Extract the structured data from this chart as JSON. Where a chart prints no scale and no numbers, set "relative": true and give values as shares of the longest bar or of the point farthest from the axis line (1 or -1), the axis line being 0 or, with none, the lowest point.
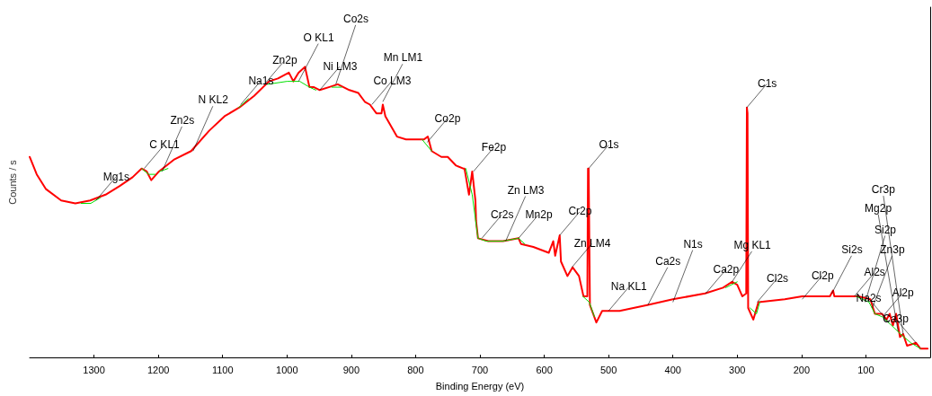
{
  "chart_data": {
    "type": "line",
    "relative": true,
    "xlabel": "Binding Energy (eV)",
    "ylabel": "Counts / s",
    "xlim": [
      1400,
      0
    ],
    "xticks": [
      1300,
      1200,
      1100,
      1000,
      900,
      800,
      700,
      600,
      500,
      400,
      300,
      200,
      100
    ],
    "grid": false,
    "marker": "none",
    "line_style": "solid",
    "series": [
      {
        "color": "#ff0000",
        "x": [
          1400,
          1389,
          1375,
          1351,
          1329,
          1306,
          1282,
          1260,
          1240,
          1226,
          1218,
          1211,
          1199,
          1176,
          1149,
          1121,
          1097,
          1074,
          1051,
          1028,
          1014,
          997,
          990,
          982,
          972,
          965,
          958,
          949,
          935,
          921,
          903,
          889,
          879,
          871,
          861,
          853,
          851,
          847,
          829,
          815,
          796,
          787,
          781,
          775,
          760,
          750,
          737,
          726,
          724,
          717,
          712,
          707,
          706,
          703,
          687,
          664,
          640,
          636,
          617,
          593,
          586,
          583,
          576,
          574,
          564,
          556,
          546,
          539,
          533,
          532,
          531,
          529,
          519,
          510,
          500,
          483,
          440,
          400,
          350,
          322,
          308,
          300,
          292,
          286,
          285,
          284,
          283,
          275,
          267,
          226,
          199,
          156,
          151,
          149,
          112,
          93,
          86,
          75,
          68,
          63,
          58,
          53,
          47,
          42,
          36,
          22,
          15,
          4
        ],
        "values": [
          0.69,
          0.63,
          0.58,
          0.54,
          0.53,
          0.54,
          0.56,
          0.59,
          0.62,
          0.65,
          0.64,
          0.61,
          0.64,
          0.68,
          0.71,
          0.78,
          0.83,
          0.86,
          0.9,
          0.95,
          0.96,
          0.98,
          0.95,
          0.98,
          1.0,
          0.93,
          0.93,
          0.92,
          0.93,
          0.94,
          0.92,
          0.91,
          0.88,
          0.87,
          0.84,
          0.84,
          0.87,
          0.83,
          0.76,
          0.75,
          0.75,
          0.75,
          0.76,
          0.71,
          0.69,
          0.69,
          0.66,
          0.65,
          0.65,
          0.56,
          0.64,
          0.54,
          0.47,
          0.41,
          0.4,
          0.4,
          0.41,
          0.39,
          0.38,
          0.36,
          0.4,
          0.35,
          0.42,
          0.33,
          0.28,
          0.31,
          0.28,
          0.21,
          0.21,
          0.65,
          0.65,
          0.18,
          0.12,
          0.16,
          0.16,
          0.16,
          0.18,
          0.2,
          0.22,
          0.24,
          0.26,
          0.25,
          0.21,
          0.22,
          0.86,
          0.84,
          0.17,
          0.13,
          0.19,
          0.2,
          0.21,
          0.21,
          0.23,
          0.21,
          0.21,
          0.2,
          0.15,
          0.15,
          0.13,
          0.15,
          0.11,
          0.15,
          0.07,
          0.08,
          0.04,
          0.05,
          0.03,
          0.03
        ]
      },
      {
        "color": "#00e000",
        "x": [
          1320,
          1305,
          1290,
          1289,
          1226,
          1215,
          1205,
          1204,
          1198,
          1185,
          1184,
          1075,
          1060,
          1059,
          1030,
          1000,
          980,
          965,
          955,
          954,
          930,
          915,
          914,
          790,
          775,
          774,
          722,
          712,
          703,
          690,
          665,
          640,
          630,
          629,
          540,
          530,
          522,
          521,
          318,
          300,
          299,
          280,
          270,
          265,
          264,
          115,
          95,
          86,
          75,
          60,
          46,
          30,
          15
        ],
        "values": [
          0.53,
          0.53,
          0.55,
          null,
          0.65,
          0.63,
          0.63,
          null,
          0.64,
          0.65,
          null,
          0.86,
          0.89,
          null,
          0.94,
          0.95,
          0.95,
          0.93,
          0.92,
          null,
          0.93,
          0.93,
          null,
          0.75,
          0.71,
          null,
          0.65,
          0.56,
          0.41,
          0.4,
          0.4,
          0.41,
          0.39,
          null,
          0.21,
          0.19,
          0.14,
          null,
          0.24,
          0.26,
          null,
          0.17,
          0.15,
          0.19,
          null,
          0.21,
          0.19,
          0.15,
          0.14,
          0.11,
          0.08,
          0.05,
          0.03
        ]
      }
    ],
    "annotations": [
      {
        "text": "Mg1s",
        "x": 1297,
        "y": 0.54
      },
      {
        "text": "C KL1",
        "x": 1222,
        "y": 0.65
      },
      {
        "text": "Zn2s",
        "x": 1194,
        "y": 0.64
      },
      {
        "text": "N KL2",
        "x": 1146,
        "y": 0.71
      },
      {
        "text": "Na1s",
        "x": 1072,
        "y": 0.87
      },
      {
        "text": "Zn2p",
        "x": 1035,
        "y": 0.94
      },
      {
        "text": "O KL1",
        "x": 982,
        "y": 0.95
      },
      {
        "text": "Ni LM3",
        "x": 949,
        "y": 0.92
      },
      {
        "text": "Co2s",
        "x": 924,
        "y": 0.94
      },
      {
        "text": "Co LM3",
        "x": 868,
        "y": 0.87
      },
      {
        "text": "Mn LM1",
        "x": 851,
        "y": 0.88
      },
      {
        "text": "Co2p",
        "x": 782,
        "y": 0.74
      },
      {
        "text": "Fe2p",
        "x": 710,
        "y": 0.64
      },
      {
        "text": "Cr2s",
        "x": 697,
        "y": 0.41
      },
      {
        "text": "Zn LM3",
        "x": 660,
        "y": 0.4
      },
      {
        "text": "Mn2p",
        "x": 640,
        "y": 0.41
      },
      {
        "text": "Cr2p",
        "x": 576,
        "y": 0.42
      },
      {
        "text": "Zn LM4",
        "x": 557,
        "y": 0.31
      },
      {
        "text": "O1s",
        "x": 531,
        "y": 0.65
      },
      {
        "text": "Na KL1",
        "x": 500,
        "y": 0.16
      },
      {
        "text": "Ca2s",
        "x": 439,
        "y": 0.18
      },
      {
        "text": "N1s",
        "x": 400,
        "y": 0.19
      },
      {
        "text": "Ca2p",
        "x": 349,
        "y": 0.22
      },
      {
        "text": "Mg KL1",
        "x": 308,
        "y": 0.26
      },
      {
        "text": "C1s",
        "x": 285,
        "y": 0.86
      },
      {
        "text": "Cl2s",
        "x": 269,
        "y": 0.19
      },
      {
        "text": "Cl2p",
        "x": 199,
        "y": 0.2
      },
      {
        "text": "Si2s",
        "x": 153,
        "y": 0.22
      },
      {
        "text": "Al2s",
        "x": 118,
        "y": 0.21
      },
      {
        "text": "Si2p",
        "x": 101,
        "y": 0.19
      },
      {
        "text": "Zn3p",
        "x": 90,
        "y": 0.17
      },
      {
        "text": "Al2p",
        "x": 74,
        "y": 0.14
      },
      {
        "text": "Na2s",
        "x": 64,
        "y": 0.12
      },
      {
        "text": "Mg2p",
        "x": 50,
        "y": 0.09
      },
      {
        "text": "Cr3p",
        "x": 42,
        "y": 0.08
      },
      {
        "text": "Ca3p",
        "x": 22,
        "y": 0.05
      }
    ]
  }
}
